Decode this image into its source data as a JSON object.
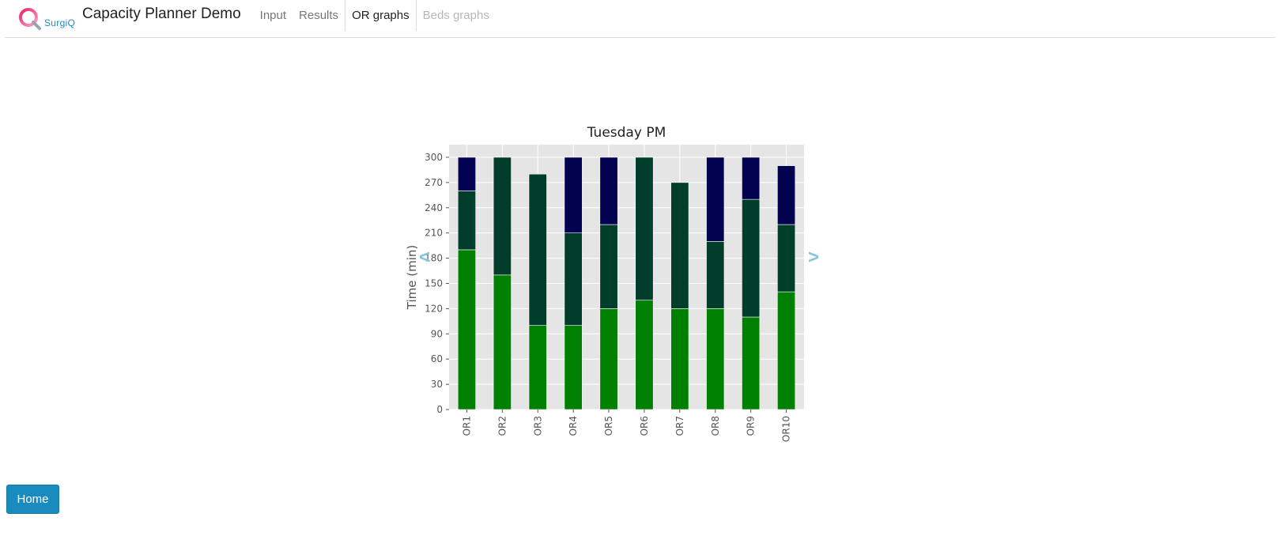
{
  "header": {
    "logo_text": "SurgiQ",
    "app_title": "Capacity Planner Demo",
    "tabs": [
      {
        "label": "Input",
        "state": "normal"
      },
      {
        "label": "Results",
        "state": "normal"
      },
      {
        "label": "OR graphs",
        "state": "active"
      },
      {
        "label": "Beds graphs",
        "state": "disabled"
      }
    ]
  },
  "nav_arrows": {
    "prev": "<",
    "next": ">"
  },
  "footer": {
    "home_label": "Home"
  },
  "colors": {
    "bottom": "#008000",
    "middle": "#003d2b",
    "top": "#020250",
    "plot_bg": "#e5e5e5",
    "accent": "#1a8bbf"
  },
  "chart_data": {
    "type": "bar",
    "stacked": true,
    "title": "Tuesday PM",
    "xlabel": "",
    "ylabel": "Time (min)",
    "ylim": [
      0,
      315
    ],
    "yticks": [
      0,
      30,
      60,
      90,
      120,
      150,
      180,
      210,
      240,
      270,
      300
    ],
    "grid": true,
    "legend": "none",
    "categories": [
      "OR1",
      "OR2",
      "OR3",
      "OR4",
      "OR5",
      "OR6",
      "OR7",
      "OR8",
      "OR9",
      "OR10"
    ],
    "series": [
      {
        "color": "#008000",
        "values": [
          190,
          160,
          100,
          100,
          120,
          130,
          120,
          120,
          110,
          140
        ]
      },
      {
        "color": "#003d2b",
        "values": [
          70,
          140,
          180,
          110,
          100,
          170,
          150,
          80,
          140,
          80
        ]
      },
      {
        "color": "#020250",
        "values": [
          40,
          0,
          0,
          90,
          80,
          0,
          0,
          100,
          50,
          70
        ]
      }
    ]
  }
}
